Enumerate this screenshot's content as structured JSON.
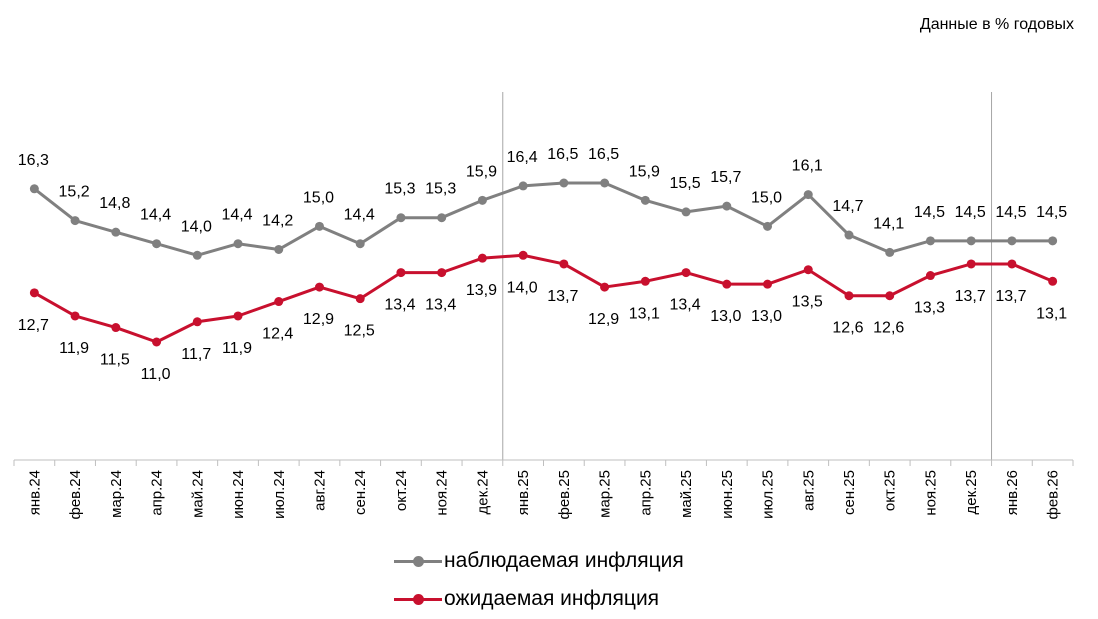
{
  "unit_note": "Данные в % годовых",
  "colors": {
    "observed": "#808080",
    "expected": "#C8102E",
    "axis": "#BFBFBF",
    "separator": "#A6A6A6"
  },
  "chart_data": {
    "type": "line",
    "title": "",
    "xlabel": "",
    "ylabel": "",
    "categories": [
      "янв.24",
      "фев.24",
      "мар.24",
      "апр.24",
      "май.24",
      "июн.24",
      "июл.24",
      "авг.24",
      "сен.24",
      "окт.24",
      "ноя.24",
      "дек.24",
      "янв.25",
      "фев.25",
      "мар.25",
      "апр.25",
      "май.25",
      "июн.25",
      "июл.25",
      "авг.25",
      "сен.25",
      "окт.25",
      "ноя.25",
      "дек.25",
      "янв.26",
      "фев.26"
    ],
    "series": [
      {
        "name": "наблюдаемая инфляция",
        "values": [
          16.3,
          15.2,
          14.8,
          14.4,
          14.0,
          14.4,
          14.2,
          15.0,
          14.4,
          15.3,
          15.3,
          15.9,
          16.4,
          16.5,
          16.5,
          15.9,
          15.5,
          15.7,
          15.0,
          16.1,
          14.7,
          14.1,
          14.5,
          14.5,
          14.5,
          14.5
        ]
      },
      {
        "name": "ожидаемая инфляция",
        "values": [
          12.7,
          11.9,
          11.5,
          11.0,
          11.7,
          11.9,
          12.4,
          12.9,
          12.5,
          13.4,
          13.4,
          13.9,
          14.0,
          13.7,
          12.9,
          13.1,
          13.4,
          13.0,
          13.0,
          13.5,
          12.6,
          12.6,
          13.3,
          13.7,
          13.7,
          13.1
        ]
      }
    ],
    "value_labels": [
      [
        "16,3",
        "15,2",
        "14,8",
        "14,4",
        "14,0",
        "14,4",
        "14,2",
        "15,0",
        "14,4",
        "15,3",
        "15,3",
        "15,9",
        "16,4",
        "16,5",
        "16,5",
        "15,9",
        "15,5",
        "15,7",
        "15,0",
        "16,1",
        "14,7",
        "14,1",
        "14,5",
        "14,5",
        "14,5",
        "14,5"
      ],
      [
        "12,7",
        "11,9",
        "11,5",
        "11,0",
        "11,7",
        "11,9",
        "12,4",
        "12,9",
        "12,5",
        "13,4",
        "13,4",
        "13,9",
        "14,0",
        "13,7",
        "12,9",
        "13,1",
        "13,4",
        "13,0",
        "13,0",
        "13,5",
        "12,6",
        "12,6",
        "13,3",
        "13,7",
        "13,7",
        "13,1"
      ]
    ],
    "year_separators_after": [
      "дек.24",
      "дек.25"
    ],
    "legend_position": "bottom",
    "grid": false
  }
}
